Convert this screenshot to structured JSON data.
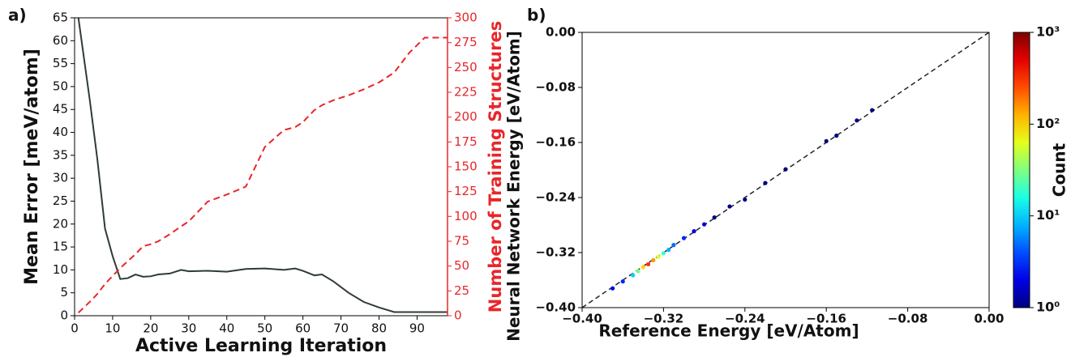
{
  "chart_data": [
    {
      "type": "line",
      "label": "a)",
      "xlabel": "Active Learning Iteration",
      "ylabel": "Mean Error [meV/atom]",
      "y2label": "Number of Training Structures",
      "x": [
        1,
        4,
        6,
        8,
        10,
        12,
        14,
        16,
        18,
        20,
        22,
        25,
        28,
        30,
        35,
        40,
        45,
        50,
        55,
        58,
        60,
        63,
        65,
        68,
        72,
        76,
        80,
        84,
        88,
        92,
        98
      ],
      "xlim": [
        0,
        98
      ],
      "xticks": [
        0,
        10,
        20,
        30,
        40,
        50,
        60,
        70,
        80,
        90
      ],
      "ylim": [
        0,
        65
      ],
      "yticks": [
        0,
        5,
        10,
        15,
        20,
        25,
        30,
        35,
        40,
        45,
        50,
        55,
        60,
        65
      ],
      "y2lim": [
        0,
        300
      ],
      "y2ticks": [
        0,
        25,
        50,
        75,
        100,
        125,
        150,
        175,
        200,
        225,
        250,
        275,
        300
      ],
      "y2color": "#e8262a",
      "series": [
        {
          "color": "#2f3b36",
          "linestyle": "solid",
          "values": [
            65,
            47,
            34,
            19,
            13,
            8,
            8.2,
            9,
            8.5,
            8.6,
            9,
            9.2,
            10,
            9.7,
            9.8,
            9.6,
            10.2,
            10.3,
            10,
            10.3,
            9.8,
            8.8,
            9,
            7.5,
            5,
            3,
            1.8,
            0.8,
            0.8,
            0.8,
            0.8
          ]
        },
        {
          "color": "#e8262a",
          "linestyle": "dashed",
          "axis": "y2",
          "values": [
            3,
            14,
            22,
            32,
            40,
            48,
            55,
            62,
            70,
            72,
            75,
            82,
            90,
            95,
            115,
            122,
            130,
            170,
            187,
            190,
            195,
            207,
            212,
            217,
            222,
            228,
            235,
            245,
            265,
            280,
            280
          ]
        }
      ]
    },
    {
      "type": "scatter",
      "label": "b)",
      "xlabel": "Reference Energy [eV/Atom]",
      "ylabel": "Neural Network Energy [eV/Atom]",
      "xlim": [
        -0.4,
        0
      ],
      "xticks": [
        {
          "value": -0.4,
          "label": "−0.40"
        },
        {
          "value": -0.32,
          "label": "−0.32"
        },
        {
          "value": -0.24,
          "label": "−0.24"
        },
        {
          "value": -0.16,
          "label": "−0.16"
        },
        {
          "value": -0.08,
          "label": "−0.08"
        },
        {
          "value": 0,
          "label": "0.00"
        }
      ],
      "ylim": [
        -0.4,
        0
      ],
      "yticks": [
        {
          "value": -0.4,
          "label": "−0.40"
        },
        {
          "value": -0.32,
          "label": "−0.32"
        },
        {
          "value": -0.24,
          "label": "−0.24"
        },
        {
          "value": -0.16,
          "label": "−0.16"
        },
        {
          "value": -0.08,
          "label": "−0.08"
        },
        {
          "value": 0,
          "label": "0.00"
        }
      ],
      "reference_line": true,
      "series": [
        {
          "x": [
            -0.37,
            -0.36,
            -0.35,
            -0.345,
            -0.34,
            -0.335,
            -0.33,
            -0.325,
            -0.32,
            -0.315,
            -0.31,
            -0.3,
            -0.29,
            -0.28,
            -0.27,
            -0.255,
            -0.24,
            -0.22,
            -0.2,
            -0.16,
            -0.15,
            -0.13,
            -0.115
          ],
          "values": [
            -0.372,
            -0.362,
            -0.353,
            -0.347,
            -0.341,
            -0.337,
            -0.331,
            -0.326,
            -0.321,
            -0.316,
            -0.309,
            -0.299,
            -0.289,
            -0.279,
            -0.269,
            -0.253,
            -0.243,
            -0.219,
            -0.199,
            -0.158,
            -0.15,
            -0.128,
            -0.113
          ],
          "counts": [
            2,
            3,
            10,
            30,
            100,
            300,
            150,
            60,
            20,
            8,
            5,
            3,
            2,
            2,
            1,
            1,
            1,
            1,
            1,
            1,
            1,
            1,
            1
          ]
        }
      ],
      "colorbar": {
        "label": "Count",
        "colormap": "jet",
        "log": true,
        "lim": [
          1,
          1000
        ],
        "ticks": [
          {
            "value": 1,
            "label": "10⁰"
          },
          {
            "value": 10,
            "label": "10¹"
          },
          {
            "value": 100,
            "label": "10²"
          },
          {
            "value": 1000,
            "label": "10³"
          }
        ]
      }
    }
  ]
}
